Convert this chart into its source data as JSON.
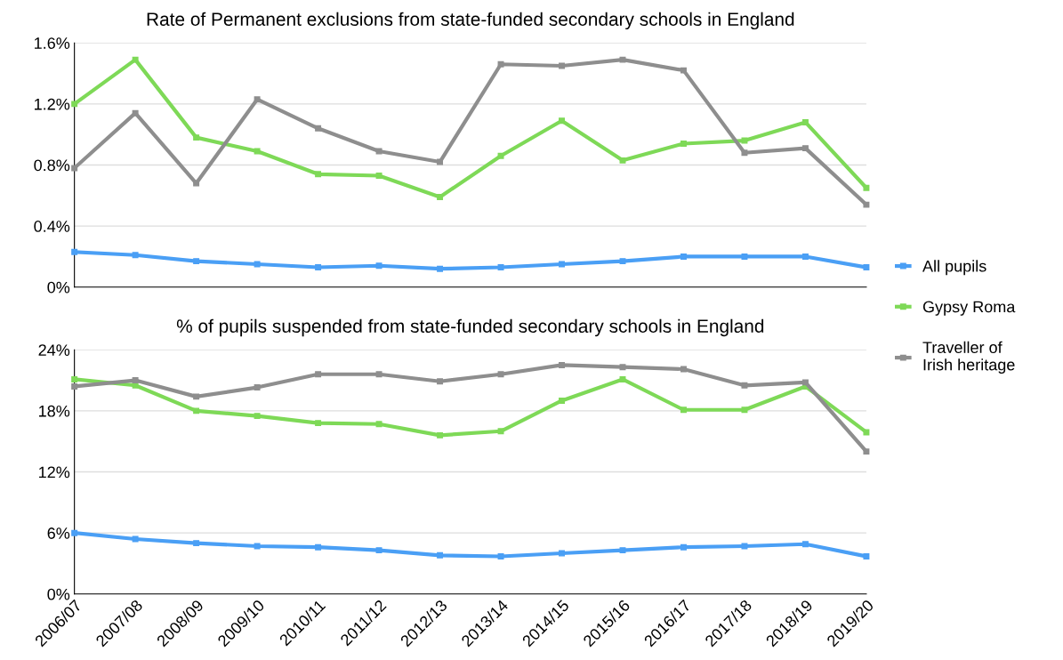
{
  "chart_data": [
    {
      "type": "line",
      "title": "Rate of Permanent exclusions from state-funded secondary schools in England",
      "categories": [
        "2006/07",
        "2007/08",
        "2008/09",
        "2009/10",
        "2010/11",
        "2011/12",
        "2012/13",
        "2013/14",
        "2014/15",
        "2015/16",
        "2016/17",
        "2017/18",
        "2018/19",
        "2019/20"
      ],
      "series": [
        {
          "name": "All pupils",
          "color": "#4a9ff5",
          "values": [
            0.23,
            0.21,
            0.17,
            0.15,
            0.13,
            0.14,
            0.12,
            0.13,
            0.15,
            0.17,
            0.2,
            0.2,
            0.2,
            0.13
          ]
        },
        {
          "name": "Gypsy Roma",
          "color": "#7ed957",
          "values": [
            1.2,
            1.49,
            0.98,
            0.89,
            0.74,
            0.73,
            0.59,
            0.86,
            1.09,
            0.83,
            0.94,
            0.96,
            1.08,
            0.65
          ]
        },
        {
          "name": "Traveller of\nIrish heritage",
          "color": "#8e8e8e",
          "values": [
            0.78,
            1.14,
            0.68,
            1.23,
            1.04,
            0.89,
            0.82,
            1.46,
            1.45,
            1.49,
            1.42,
            0.88,
            0.91,
            0.54
          ]
        }
      ],
      "ylim": [
        0,
        1.6
      ],
      "yticks": [
        {
          "value": 0,
          "label": "0%"
        },
        {
          "value": 0.4,
          "label": "0.4%"
        },
        {
          "value": 0.8,
          "label": "0.8%"
        },
        {
          "value": 1.2,
          "label": "1.2%"
        },
        {
          "value": 1.6,
          "label": "1.6%"
        }
      ],
      "grid": "y",
      "legend": "right",
      "marker": "square",
      "line_style": "solid",
      "tick_labels": "y"
    },
    {
      "type": "line",
      "title": "% of pupils suspended from state-funded secondary schools in England",
      "categories": [
        "2006/07",
        "2007/08",
        "2008/09",
        "2009/10",
        "2010/11",
        "2011/12",
        "2012/13",
        "2013/14",
        "2014/15",
        "2015/16",
        "2016/17",
        "2017/18",
        "2018/19",
        "2019/20"
      ],
      "series": [
        {
          "color": "#4a9ff5",
          "values": [
            6.0,
            5.4,
            5.0,
            4.7,
            4.6,
            4.3,
            3.8,
            3.7,
            4.0,
            4.3,
            4.6,
            4.7,
            4.9,
            3.7
          ]
        },
        {
          "color": "#7ed957",
          "values": [
            21.1,
            20.5,
            18.0,
            17.5,
            16.8,
            16.7,
            15.6,
            16.0,
            19.0,
            21.1,
            18.1,
            18.1,
            20.4,
            15.9
          ]
        },
        {
          "color": "#8e8e8e",
          "values": [
            20.4,
            21.0,
            19.4,
            20.3,
            21.6,
            21.6,
            20.9,
            21.6,
            22.5,
            22.3,
            22.1,
            20.5,
            20.8,
            14.0
          ]
        }
      ],
      "ylim": [
        0,
        24
      ],
      "yticks": [
        {
          "value": 0,
          "label": "0%"
        },
        {
          "value": 6,
          "label": "6%"
        },
        {
          "value": 12,
          "label": "12%"
        },
        {
          "value": 18,
          "label": "18%"
        },
        {
          "value": 24,
          "label": "24%"
        }
      ],
      "grid": "y",
      "marker": "square",
      "line_style": "solid"
    }
  ]
}
